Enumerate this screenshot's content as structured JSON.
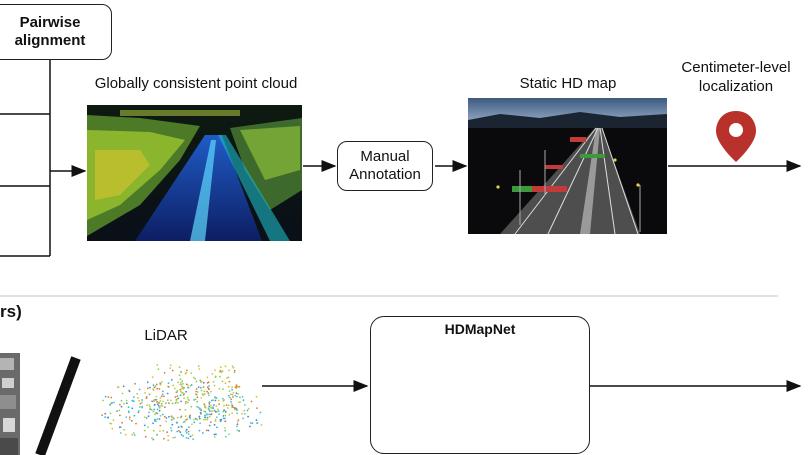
{
  "top": {
    "pairwise_box": {
      "line1": "Pairwise",
      "line2": "alignment"
    },
    "pointcloud_title": "Globally consistent point cloud",
    "manual_box": {
      "line1": "Manual",
      "line2": "Annotation"
    },
    "hdmap_title": "Static HD map",
    "localization": {
      "line1": "Centimeter-level",
      "line2": "localization"
    }
  },
  "bottom": {
    "left_fragment": "rs)",
    "lidar_label": "LiDAR",
    "network_title": "HDMapNet"
  },
  "colors": {
    "pin": "#b8312a",
    "line": "#111111",
    "divider": "#cfcfcf"
  }
}
